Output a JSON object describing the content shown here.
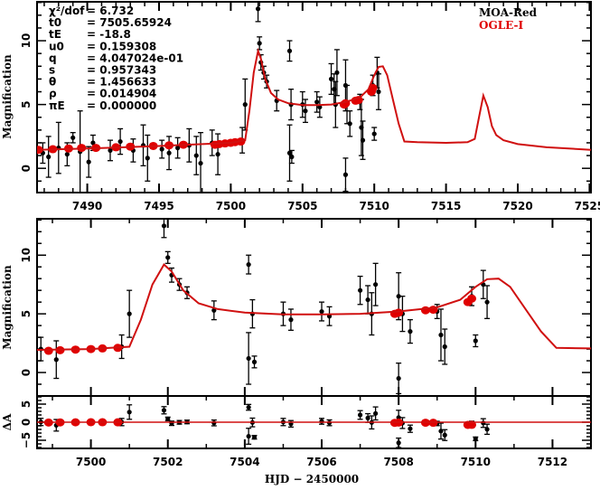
{
  "chart_data": [
    {
      "id": "full_lightcurve",
      "type": "scatter",
      "xlabel": "",
      "ylabel": "Magnification",
      "xlim": [
        7486.5,
        7525.1
      ],
      "ylim": [
        -1.9,
        13.05
      ],
      "xticks": [
        7490,
        7495,
        7500,
        7505,
        7510,
        7515,
        7520,
        7525
      ],
      "xtick_labels": [
        "7490",
        "7495",
        "7500",
        "7505",
        "7510",
        "7515",
        "7520",
        "7525"
      ],
      "yticks": [
        0,
        5,
        10
      ],
      "ytick_labels": [
        "0",
        "5",
        "10"
      ],
      "legend": {
        "placement": "top-right",
        "entries": [
          {
            "label": "MOA-Red",
            "color": "#000000"
          },
          {
            "label": "OGLE-I",
            "color": "#e00000"
          }
        ]
      },
      "parameters": [
        {
          "name": "χ²/dof",
          "value": "= 6.732"
        },
        {
          "name": "t0",
          "value": "= 7505.65924"
        },
        {
          "name": "tE",
          "value": "= -18.8"
        },
        {
          "name": "u0",
          "value": "= 0.159308"
        },
        {
          "name": "q",
          "value": "= 4.047024e-01"
        },
        {
          "name": "s",
          "value": "= 0.957343"
        },
        {
          "name": "θ",
          "value": "= 1.456633"
        },
        {
          "name": "ρ",
          "value": "= 0.014904"
        },
        {
          "name": "πE",
          "value": "= 0.000000"
        }
      ],
      "model": {
        "name": "model",
        "color": "#d01010",
        "x": [
          7486.5,
          7490,
          7495,
          7500,
          7501.0,
          7501.3,
          7501.6,
          7501.9,
          7502.1,
          7502.4,
          7502.8,
          7503.3,
          7504,
          7505,
          7506,
          7507,
          7508,
          7509,
          7509.6,
          7510.0,
          7510.3,
          7510.6,
          7510.9,
          7511.3,
          7511.7,
          7512.1,
          7513,
          7515,
          7516.5,
          7517.0,
          7517.3,
          7517.6,
          7517.9,
          7518.2,
          7518.5,
          7519,
          7520,
          7522,
          7525.1
        ],
        "y": [
          1.45,
          1.55,
          1.75,
          2.0,
          2.2,
          4.5,
          7.5,
          9.2,
          8.6,
          7.0,
          5.9,
          5.4,
          5.1,
          4.95,
          4.95,
          5.0,
          5.2,
          5.55,
          6.2,
          7.3,
          7.95,
          8.0,
          7.3,
          5.4,
          3.5,
          2.1,
          2.05,
          2.0,
          2.05,
          2.3,
          4.0,
          5.7,
          4.8,
          3.3,
          2.6,
          2.2,
          1.9,
          1.65,
          1.45
        ]
      },
      "series": [
        {
          "name": "MOA-Red",
          "color": "#000000",
          "points": [
            {
              "x": 7486.9,
              "y": 1.2,
              "err": 0.8
            },
            {
              "x": 7487.3,
              "y": 0.9,
              "err": 1.6
            },
            {
              "x": 7488.0,
              "y": 1.6,
              "err": 2.0
            },
            {
              "x": 7488.6,
              "y": 1.1,
              "err": 0.9
            },
            {
              "x": 7489.0,
              "y": 2.4,
              "err": 0.4
            },
            {
              "x": 7489.5,
              "y": 1.3,
              "err": 3.2
            },
            {
              "x": 7490.1,
              "y": 0.5,
              "err": 1.2
            },
            {
              "x": 7490.4,
              "y": 2.0,
              "err": 0.6
            },
            {
              "x": 7491.6,
              "y": 1.4,
              "err": 0.8
            },
            {
              "x": 7492.3,
              "y": 2.1,
              "err": 1.0
            },
            {
              "x": 7493.2,
              "y": 1.4,
              "err": 0.9
            },
            {
              "x": 7493.9,
              "y": 1.8,
              "err": 1.6
            },
            {
              "x": 7494.2,
              "y": 0.8,
              "err": 1.8
            },
            {
              "x": 7495.2,
              "y": 1.5,
              "err": 0.7
            },
            {
              "x": 7495.7,
              "y": 1.2,
              "err": 1.3
            },
            {
              "x": 7496.3,
              "y": 1.6,
              "err": 0.8
            },
            {
              "x": 7497.1,
              "y": 1.8,
              "err": 1.3
            },
            {
              "x": 7497.6,
              "y": 1.0,
              "err": 1.5
            },
            {
              "x": 7497.9,
              "y": 0.4,
              "err": 2.4
            },
            {
              "x": 7498.7,
              "y": 2.0,
              "err": 1.0
            },
            {
              "x": 7499.1,
              "y": 1.1,
              "err": 1.6
            },
            {
              "x": 7500.8,
              "y": 2.2,
              "err": 1.0
            },
            {
              "x": 7501.0,
              "y": 5.0,
              "err": 2.0
            },
            {
              "x": 7501.9,
              "y": 12.5,
              "err": 1.0
            },
            {
              "x": 7502.0,
              "y": 9.8,
              "err": 0.5
            },
            {
              "x": 7502.1,
              "y": 8.3,
              "err": 0.6
            },
            {
              "x": 7502.3,
              "y": 7.5,
              "err": 0.5
            },
            {
              "x": 7502.5,
              "y": 6.8,
              "err": 0.5
            },
            {
              "x": 7503.2,
              "y": 5.3,
              "err": 0.8
            },
            {
              "x": 7504.1,
              "y": 9.2,
              "err": 0.8
            },
            {
              "x": 7504.2,
              "y": 5.0,
              "err": 1.2
            },
            {
              "x": 7504.1,
              "y": 1.2,
              "err": 2.2
            },
            {
              "x": 7504.25,
              "y": 0.9,
              "err": 0.5
            },
            {
              "x": 7505.0,
              "y": 5.0,
              "err": 1.0
            },
            {
              "x": 7505.2,
              "y": 4.5,
              "err": 0.9
            },
            {
              "x": 7506.0,
              "y": 5.2,
              "err": 0.8
            },
            {
              "x": 7506.2,
              "y": 4.8,
              "err": 0.8
            },
            {
              "x": 7507.0,
              "y": 7.0,
              "err": 1.2
            },
            {
              "x": 7507.2,
              "y": 6.2,
              "err": 1.2
            },
            {
              "x": 7507.3,
              "y": 5.0,
              "err": 1.8
            },
            {
              "x": 7507.4,
              "y": 7.5,
              "err": 1.8
            },
            {
              "x": 7508.0,
              "y": 6.5,
              "err": 2.0
            },
            {
              "x": 7508.1,
              "y": 5.0,
              "err": 1.5
            },
            {
              "x": 7508.0,
              "y": -0.5,
              "err": 1.3
            },
            {
              "x": 7508.3,
              "y": 3.5,
              "err": 1.0
            },
            {
              "x": 7509.0,
              "y": 5.2,
              "err": 0.6
            },
            {
              "x": 7509.1,
              "y": 3.2,
              "err": 2.2
            },
            {
              "x": 7509.2,
              "y": 2.2,
              "err": 1.5
            },
            {
              "x": 7509.9,
              "y": 6.5,
              "err": 0.8
            },
            {
              "x": 7510.0,
              "y": 2.7,
              "err": 0.5
            },
            {
              "x": 7510.2,
              "y": 7.5,
              "err": 1.2
            },
            {
              "x": 7510.3,
              "y": 6.0,
              "err": 1.4
            }
          ]
        },
        {
          "name": "OGLE-I",
          "color": "#e00000",
          "points": [
            {
              "x": 7486.6,
              "y": 1.45
            },
            {
              "x": 7487.6,
              "y": 1.5
            },
            {
              "x": 7488.7,
              "y": 1.55
            },
            {
              "x": 7489.6,
              "y": 1.6
            },
            {
              "x": 7490.6,
              "y": 1.6
            },
            {
              "x": 7492.0,
              "y": 1.65
            },
            {
              "x": 7493.0,
              "y": 1.7
            },
            {
              "x": 7494.6,
              "y": 1.75
            },
            {
              "x": 7495.7,
              "y": 1.8
            },
            {
              "x": 7496.7,
              "y": 1.85
            },
            {
              "x": 7498.9,
              "y": 1.85
            },
            {
              "x": 7499.2,
              "y": 1.9
            },
            {
              "x": 7499.6,
              "y": 1.95
            },
            {
              "x": 7500.0,
              "y": 2.0
            },
            {
              "x": 7500.3,
              "y": 2.05
            },
            {
              "x": 7500.7,
              "y": 2.1
            },
            {
              "x": 7507.9,
              "y": 5.0
            },
            {
              "x": 7508.0,
              "y": 5.1
            },
            {
              "x": 7508.7,
              "y": 5.3
            },
            {
              "x": 7508.9,
              "y": 5.35
            },
            {
              "x": 7509.8,
              "y": 6.0
            },
            {
              "x": 7509.9,
              "y": 6.3
            }
          ]
        }
      ]
    },
    {
      "id": "zoomed_lightcurve",
      "type": "scatter",
      "xlabel": "",
      "ylabel": "Magnification",
      "xlim": [
        7498.6,
        7513.0
      ],
      "ylim": [
        -2.0,
        13.1
      ],
      "xticks": [
        7500,
        7502,
        7504,
        7506,
        7508,
        7510,
        7512
      ],
      "xtick_labels": [
        "7500",
        "7502",
        "7504",
        "7506",
        "7508",
        "7510",
        "7512"
      ],
      "yticks": [
        0,
        5,
        10
      ],
      "ytick_labels": [
        "0",
        "5",
        "10"
      ]
    },
    {
      "id": "residuals",
      "type": "scatter",
      "xlabel": "HJD − 2450000",
      "ylabel": "ΔA",
      "xlim": [
        7498.6,
        7513.0
      ],
      "ylim": [
        -7.25,
        7.25
      ],
      "xticks": [
        7500,
        7502,
        7504,
        7506,
        7508,
        7510,
        7512
      ],
      "xtick_labels": [
        "7500",
        "7502",
        "7504",
        "7506",
        "7508",
        "7510",
        "7512"
      ],
      "yticks": [
        -5,
        0,
        5
      ],
      "ytick_labels": [
        "−5",
        "0",
        "5"
      ]
    }
  ]
}
